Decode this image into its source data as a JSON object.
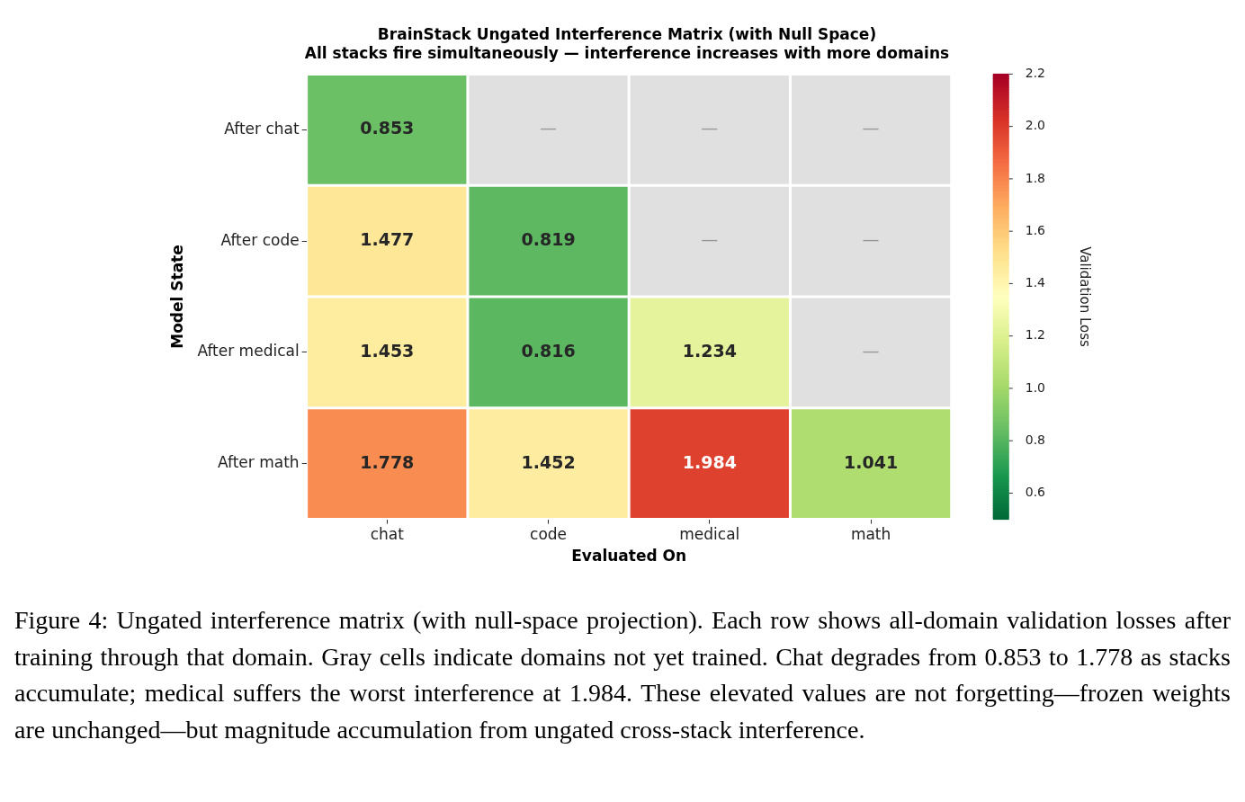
{
  "chart_data": {
    "type": "heatmap",
    "title": "BrainStack Ungated Interference Matrix (with Null Space)",
    "subtitle": "All stacks fire simultaneously — interference increases with more domains",
    "xlabel": "Evaluated On",
    "ylabel": "Model State",
    "clabel": "Validation Loss",
    "categories": [
      "chat",
      "code",
      "medical",
      "math"
    ],
    "y_categories": [
      "After chat",
      "After code",
      "After medical",
      "After math"
    ],
    "cells": [
      [
        0.853,
        null,
        null,
        null
      ],
      [
        1.477,
        0.819,
        null,
        null
      ],
      [
        1.453,
        0.816,
        1.234,
        null
      ],
      [
        1.778,
        1.452,
        1.984,
        1.041
      ]
    ],
    "cell_labels": [
      [
        "0.853",
        "—",
        "—",
        "—"
      ],
      [
        "1.477",
        "0.819",
        "—",
        "—"
      ],
      [
        "1.453",
        "0.816",
        "1.234",
        "—"
      ],
      [
        "1.778",
        "1.452",
        "1.984",
        "1.041"
      ]
    ],
    "clim": [
      0.5,
      2.2
    ],
    "cticks": [
      0.6,
      0.8,
      {
        "value": 1,
        "label": "1.0"
      },
      1.2,
      1.4,
      1.6,
      1.8,
      {
        "value": 2,
        "label": "2.0"
      },
      2.2
    ],
    "annotations": [
      "Figure 4: Ungated interference matrix (with null-space projection). Each row shows all-domain validation losses after training through that domain. Gray cells indicate domains not yet trained. Chat degrades from 0.853 to 1.778 as stacks accumulate; medical suffers the worst interference at 1.984. These elevated values are not forgetting—frozen weights are unchanged—but magnitude accumulation from ungated cross-stack interference."
    ]
  }
}
